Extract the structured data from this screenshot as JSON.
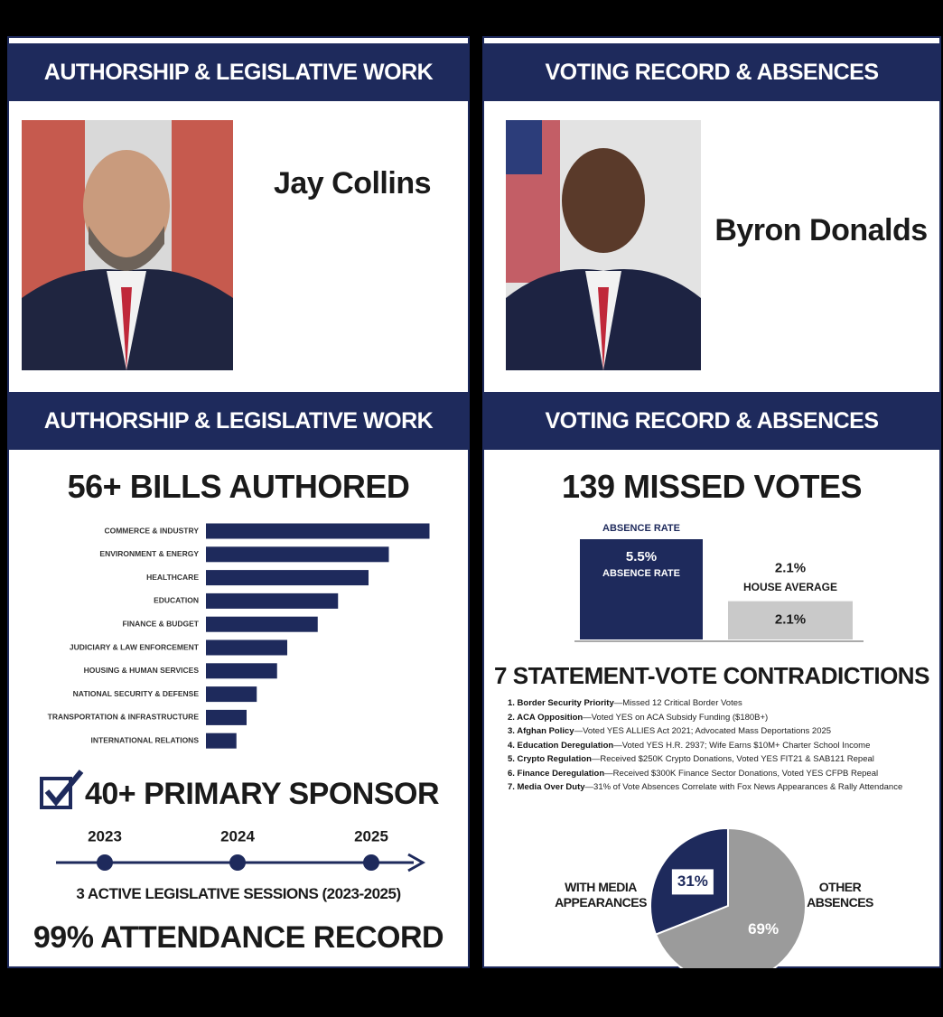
{
  "left": {
    "header": "AUTHORSHIP & LEGISLATIVE WORK",
    "name": "Jay Collins",
    "section_header": "AUTHORSHIP & LEGISLATIVE WORK",
    "sponsor": "40+ PRIMARY SPONSOR",
    "timeline": {
      "years": [
        "2023",
        "2024",
        "2025"
      ],
      "caption": "3 ACTIVE LEGISLATIVE SESSIONS (2023-2025)"
    },
    "attendance": "99% ATTENDANCE RECORD"
  },
  "right": {
    "header": "VOTING RECORD & ABSENCES",
    "name": "Byron Donalds",
    "section_header": "VOTING RECORD & ABSENCES",
    "contradictions_title": "7 STATEMENT-VOTE CONTRADICTIONS",
    "contradictions": [
      {
        "topic": "1. Border Security Priority",
        "detail": "—Missed 12 Critical Border Votes"
      },
      {
        "topic": "2. ACA Opposition",
        "detail": "—Voted YES on ACA Subsidy Funding ($180B+)"
      },
      {
        "topic": "3. Afghan Policy",
        "detail": "—Voted YES ALLIES Act 2021; Advocated Mass Deportations 2025"
      },
      {
        "topic": "4. Education Deregulation",
        "detail": "—Voted YES H.R. 2937; Wife Earns $10M+ Charter School Income"
      },
      {
        "topic": "5. Crypto Regulation",
        "detail": "—Received $250K Crypto Donations, Voted YES FIT21 & SAB121 Repeal"
      },
      {
        "topic": "6. Finance Deregulation",
        "detail": "—Received $300K Finance Sector Donations, Voted YES CFPB Repeal"
      },
      {
        "topic": "7. Media Over Duty",
        "detail": "—31% of Vote Absences Correlate with Fox News Appearances & Rally Attendance"
      }
    ]
  },
  "chart_data": [
    {
      "type": "hbar",
      "title": "56+ BILLS AUTHORED",
      "categories": [
        "COMMERCE & INDUSTRY",
        "ENVIRONMENT & ENERGY",
        "HEALTHCARE",
        "EDUCATION",
        "FINANCE & BUDGET",
        "JUDICIARY & LAW ENFORCEMENT",
        "HOUSING & HUMAN SERVICES",
        "NATIONAL SECURITY & DEFENSE",
        "TRANSPORTATION & INFRASTRUCTURE",
        "INTERNATIONAL RELATIONS"
      ],
      "values": [
        11,
        9,
        8,
        6.5,
        5.5,
        4,
        3.5,
        2.5,
        2,
        1.5
      ],
      "color": "#1e2a5c",
      "xlim": [
        0,
        12
      ]
    },
    {
      "type": "bar",
      "title": "139 MISSED VOTES",
      "categories": [
        "ABSENCE RATE",
        "HOUSE AVERAGE"
      ],
      "values": [
        5.5,
        2.1
      ],
      "value_labels": [
        "5.5%",
        "2.1%"
      ],
      "colors": [
        "#1e2a5c",
        "#c9c9c9"
      ],
      "ylim": [
        0,
        5.5
      ]
    },
    {
      "type": "pie",
      "categories": [
        "WITH MEDIA APPEARANCES",
        "OTHER ABSENCES"
      ],
      "values": [
        31,
        69
      ],
      "value_labels": [
        "31%",
        "69%"
      ],
      "colors": [
        "#1e2a5c",
        "#9b9b9b"
      ]
    }
  ]
}
